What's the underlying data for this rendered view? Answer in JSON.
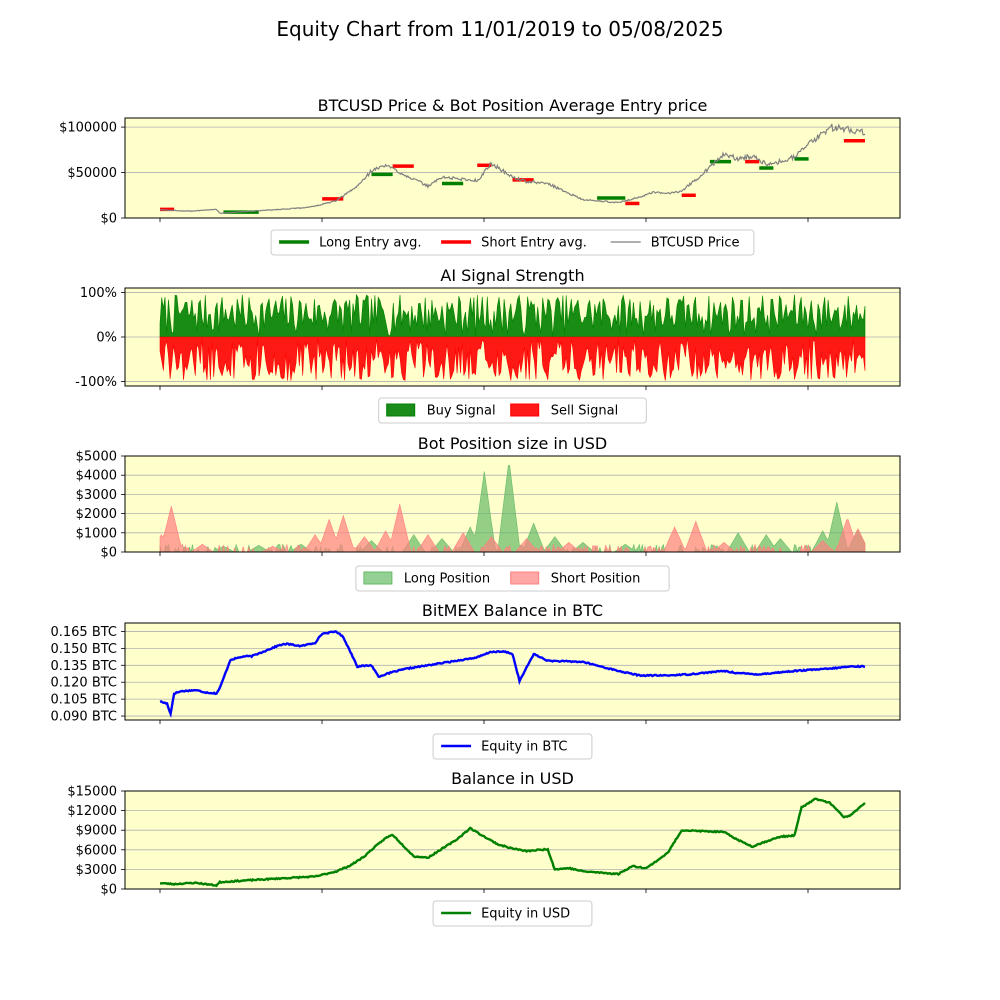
{
  "figure": {
    "title": "Equity Chart from 11/01/2019 to 05/08/2025",
    "background": "#ffffff",
    "axes_background": "#ffffcc"
  },
  "chart_data": [
    {
      "id": "price",
      "type": "line",
      "title": "BTCUSD Price & Bot Position Average Entry price",
      "x_start": "11/01/2019",
      "x_end": "05/08/2025",
      "ylim": [
        0,
        110000
      ],
      "yticks": [
        0,
        50000,
        100000
      ],
      "ytick_labels": [
        "$0",
        "$50000",
        "$100000"
      ],
      "grid": "y",
      "legend": {
        "placement": "bottom-center",
        "columns": 3,
        "entries": [
          {
            "label": "Long Entry avg.",
            "color": "#008000"
          },
          {
            "label": "Short Entry avg.",
            "color": "#ff0000"
          },
          {
            "label": "BTCUSD Price",
            "color": "#808080"
          }
        ]
      },
      "x": [
        0,
        0.04,
        0.08,
        0.085,
        0.12,
        0.2,
        0.22,
        0.25,
        0.28,
        0.3,
        0.32,
        0.38,
        0.4,
        0.45,
        0.47,
        0.5,
        0.52,
        0.55,
        0.6,
        0.65,
        0.68,
        0.7,
        0.72,
        0.74,
        0.76,
        0.8,
        0.82,
        0.84,
        0.86,
        0.88,
        0.9,
        0.95,
        1.0
      ],
      "series": [
        {
          "name": "BTCUSD Price",
          "color": "#808080",
          "values": [
            9000,
            7500,
            9500,
            5200,
            7000,
            11000,
            13000,
            19000,
            35000,
            52000,
            58000,
            35000,
            45000,
            41000,
            60000,
            45000,
            40000,
            38000,
            20000,
            17000,
            23000,
            28000,
            27000,
            30000,
            42000,
            70000,
            65000,
            68000,
            60000,
            62000,
            68000,
            100000,
            95000
          ]
        },
        {
          "name": "Long Entry avg.",
          "color": "#008000",
          "style": "segments",
          "segments": [
            [
              0.09,
              0.14,
              6500
            ],
            [
              0.3,
              0.33,
              48000
            ],
            [
              0.4,
              0.43,
              38000
            ],
            [
              0.62,
              0.66,
              22000
            ],
            [
              0.78,
              0.81,
              62000
            ],
            [
              0.85,
              0.87,
              55000
            ],
            [
              0.9,
              0.92,
              65000
            ]
          ]
        },
        {
          "name": "Short Entry avg.",
          "color": "#ff0000",
          "style": "segments",
          "segments": [
            [
              0.0,
              0.02,
              9500
            ],
            [
              0.23,
              0.26,
              21000
            ],
            [
              0.33,
              0.36,
              57000
            ],
            [
              0.45,
              0.47,
              58000
            ],
            [
              0.5,
              0.53,
              42000
            ],
            [
              0.66,
              0.68,
              16000
            ],
            [
              0.74,
              0.76,
              25000
            ],
            [
              0.83,
              0.85,
              62000
            ],
            [
              0.97,
              1.0,
              85000
            ]
          ]
        }
      ]
    },
    {
      "id": "signal",
      "type": "area",
      "title": "AI Signal Strength",
      "ylim": [
        -1.1,
        1.1
      ],
      "yticks": [
        -1,
        0,
        1
      ],
      "ytick_labels": [
        "-100%",
        "0%",
        "100%"
      ],
      "grid": "y",
      "legend": {
        "placement": "bottom-center",
        "columns": 2,
        "entries": [
          {
            "label": "Buy Signal",
            "color": "#008000"
          },
          {
            "label": "Sell Signal",
            "color": "#ff0000"
          }
        ]
      },
      "series": [
        {
          "name": "Buy Signal",
          "color": "#008000",
          "sign": 1,
          "amplitude": 0.95,
          "seed": 7
        },
        {
          "name": "Sell Signal",
          "color": "#ff0000",
          "sign": -1,
          "amplitude": 0.98,
          "seed": 13
        }
      ]
    },
    {
      "id": "position",
      "type": "area",
      "title": "Bot Position size in USD",
      "ylim": [
        0,
        5000
      ],
      "yticks": [
        0,
        1000,
        2000,
        3000,
        4000,
        5000
      ],
      "ytick_labels": [
        "$0",
        "$1000",
        "$2000",
        "$3000",
        "$4000",
        "$5000"
      ],
      "grid": "y",
      "legend": {
        "placement": "bottom-center",
        "columns": 2,
        "entries": [
          {
            "label": "Long Position",
            "color": "#66bb66"
          },
          {
            "label": "Short Position",
            "color": "#ff8080"
          }
        ]
      },
      "series": [
        {
          "name": "Long Position",
          "color": "#66bb66",
          "peaks": [
            [
              0.09,
              300
            ],
            [
              0.14,
              350
            ],
            [
              0.2,
              400
            ],
            [
              0.3,
              600
            ],
            [
              0.36,
              900
            ],
            [
              0.4,
              700
            ],
            [
              0.44,
              1300
            ],
            [
              0.46,
              4200
            ],
            [
              0.495,
              4800
            ],
            [
              0.53,
              1500
            ],
            [
              0.56,
              800
            ],
            [
              0.6,
              500
            ],
            [
              0.66,
              400
            ],
            [
              0.82,
              1000
            ],
            [
              0.86,
              900
            ],
            [
              0.88,
              700
            ],
            [
              0.94,
              1100
            ],
            [
              0.96,
              2600
            ],
            [
              0.99,
              1200
            ]
          ]
        },
        {
          "name": "Short Position",
          "color": "#ff8080",
          "peaks": [
            [
              0.002,
              900
            ],
            [
              0.016,
              2400
            ],
            [
              0.06,
              400
            ],
            [
              0.16,
              300
            ],
            [
              0.22,
              900
            ],
            [
              0.24,
              1700
            ],
            [
              0.26,
              1900
            ],
            [
              0.29,
              800
            ],
            [
              0.32,
              1100
            ],
            [
              0.34,
              2500
            ],
            [
              0.38,
              900
            ],
            [
              0.43,
              1000
            ],
            [
              0.47,
              800
            ],
            [
              0.52,
              700
            ],
            [
              0.58,
              500
            ],
            [
              0.73,
              1300
            ],
            [
              0.76,
              1600
            ],
            [
              0.8,
              500
            ],
            [
              0.94,
              600
            ],
            [
              0.975,
              1800
            ],
            [
              0.99,
              1200
            ]
          ]
        }
      ]
    },
    {
      "id": "btc_balance",
      "type": "line",
      "title": "BitMEX Balance in BTC",
      "ylim": [
        0.0865,
        0.1725
      ],
      "yticks": [
        0.09,
        0.105,
        0.12,
        0.135,
        0.15,
        0.165
      ],
      "ytick_labels": [
        "0.090 BTC",
        "0.105 BTC",
        "0.120 BTC",
        "0.135 BTC",
        "0.150 BTC",
        "0.165 BTC"
      ],
      "grid": "y",
      "legend": {
        "placement": "bottom-center",
        "columns": 1,
        "entries": [
          {
            "label": "Equity in BTC",
            "color": "#0000ff"
          }
        ]
      },
      "x": [
        0,
        0.01,
        0.015,
        0.02,
        0.03,
        0.05,
        0.065,
        0.08,
        0.085,
        0.1,
        0.12,
        0.13,
        0.15,
        0.17,
        0.18,
        0.2,
        0.22,
        0.23,
        0.25,
        0.26,
        0.28,
        0.3,
        0.31,
        0.33,
        0.35,
        0.38,
        0.4,
        0.45,
        0.47,
        0.49,
        0.5,
        0.51,
        0.53,
        0.55,
        0.6,
        0.65,
        0.68,
        0.72,
        0.75,
        0.8,
        0.82,
        0.85,
        0.9,
        0.95,
        0.98,
        1.0
      ],
      "series": [
        {
          "name": "Equity in BTC",
          "color": "#0000ff",
          "values": [
            0.103,
            0.101,
            0.092,
            0.11,
            0.112,
            0.113,
            0.111,
            0.11,
            0.115,
            0.14,
            0.143,
            0.143,
            0.148,
            0.153,
            0.154,
            0.152,
            0.155,
            0.163,
            0.165,
            0.16,
            0.134,
            0.135,
            0.125,
            0.129,
            0.132,
            0.135,
            0.137,
            0.142,
            0.147,
            0.147,
            0.145,
            0.121,
            0.145,
            0.139,
            0.138,
            0.13,
            0.126,
            0.126,
            0.127,
            0.13,
            0.128,
            0.127,
            0.13,
            0.132,
            0.134,
            0.134
          ]
        }
      ]
    },
    {
      "id": "usd_balance",
      "type": "line",
      "title": "Balance in USD",
      "ylim": [
        0,
        15000
      ],
      "yticks": [
        0,
        3000,
        6000,
        9000,
        12000,
        15000
      ],
      "ytick_labels": [
        "$0",
        "$3000",
        "$6000",
        "$9000",
        "$12000",
        "$15000"
      ],
      "grid": "y",
      "legend": {
        "placement": "bottom-center",
        "columns": 1,
        "entries": [
          {
            "label": "Equity in USD",
            "color": "#008000"
          }
        ]
      },
      "x": [
        0,
        0.02,
        0.05,
        0.08,
        0.085,
        0.12,
        0.2,
        0.22,
        0.25,
        0.27,
        0.29,
        0.3,
        0.32,
        0.33,
        0.36,
        0.38,
        0.42,
        0.44,
        0.46,
        0.48,
        0.5,
        0.52,
        0.55,
        0.56,
        0.58,
        0.6,
        0.65,
        0.67,
        0.69,
        0.72,
        0.74,
        0.76,
        0.8,
        0.82,
        0.84,
        0.86,
        0.88,
        0.9,
        0.91,
        0.93,
        0.95,
        0.97,
        0.98,
        1.0
      ],
      "series": [
        {
          "name": "Equity in USD",
          "color": "#008000",
          "values": [
            900,
            750,
            950,
            550,
            1050,
            1300,
            1800,
            1900,
            2700,
            3600,
            5000,
            6000,
            7800,
            8300,
            5000,
            4800,
            7500,
            9300,
            8000,
            6800,
            6200,
            5800,
            6100,
            3000,
            3200,
            2700,
            2300,
            3500,
            3200,
            5500,
            9000,
            8900,
            8700,
            7500,
            6500,
            7300,
            8000,
            8200,
            12500,
            13800,
            13200,
            11000,
            11300,
            13200
          ]
        }
      ]
    }
  ]
}
